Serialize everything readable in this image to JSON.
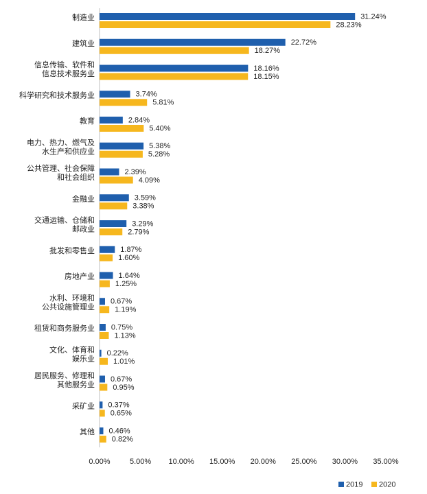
{
  "chart_data": {
    "type": "bar",
    "orientation": "horizontal",
    "categories": [
      [
        "制造业"
      ],
      [
        "建筑业"
      ],
      [
        "信息传输、软件和",
        "信息技术服务业"
      ],
      [
        "科学研究和技术服务业"
      ],
      [
        "教育"
      ],
      [
        "电力、热力、燃气及",
        "水生产和供应业"
      ],
      [
        "公共管理、社会保障",
        "和社会组织"
      ],
      [
        "金融业"
      ],
      [
        "交通运输、仓储和",
        "邮政业"
      ],
      [
        "批发和零售业"
      ],
      [
        "房地产业"
      ],
      [
        "水利、环境和",
        "公共设施管理业"
      ],
      [
        "租赁和商务服务业"
      ],
      [
        "文化、体育和",
        "娱乐业"
      ],
      [
        "居民服务、修理和",
        "其他服务业"
      ],
      [
        "采矿业"
      ],
      [
        "其他"
      ]
    ],
    "series": [
      {
        "name": "2019",
        "color": "#1f5fad",
        "values": [
          31.24,
          22.72,
          18.16,
          3.74,
          2.84,
          5.38,
          2.39,
          3.59,
          3.29,
          1.87,
          1.64,
          0.67,
          0.75,
          0.22,
          0.67,
          0.37,
          0.46
        ],
        "labels": [
          "31.24%",
          "22.72%",
          "18.16%",
          "3.74%",
          "2.84%",
          "5.38%",
          "2.39%",
          "3.59%",
          "3.29%",
          "1.87%",
          "1.64%",
          "0.67%",
          "0.75%",
          "0.22%",
          "0.67%",
          "0.37%",
          "0.46%"
        ]
      },
      {
        "name": "2020",
        "color": "#f6b71e",
        "values": [
          28.23,
          18.27,
          18.15,
          5.81,
          5.4,
          5.28,
          4.09,
          3.38,
          2.79,
          1.6,
          1.25,
          1.19,
          1.13,
          1.01,
          0.95,
          0.65,
          0.82
        ],
        "labels": [
          "28.23%",
          "18.27%",
          "18.15%",
          "5.81%",
          "5.40%",
          "5.28%",
          "4.09%",
          "3.38%",
          "2.79%",
          "1.60%",
          "1.25%",
          "1.19%",
          "1.13%",
          "1.01%",
          "0.95%",
          "0.65%",
          "0.82%"
        ]
      }
    ],
    "xlim": [
      0,
      35
    ],
    "xticks": [
      0,
      5,
      10,
      15,
      20,
      25,
      30,
      35
    ],
    "xtick_labels": [
      "0.00%",
      "5.00%",
      "10.00%",
      "15.00%",
      "20.00%",
      "25.00%",
      "30.00%",
      "35.00%"
    ],
    "grid": false,
    "legend": "bottom-right",
    "title": "",
    "xlabel": "",
    "ylabel": ""
  }
}
